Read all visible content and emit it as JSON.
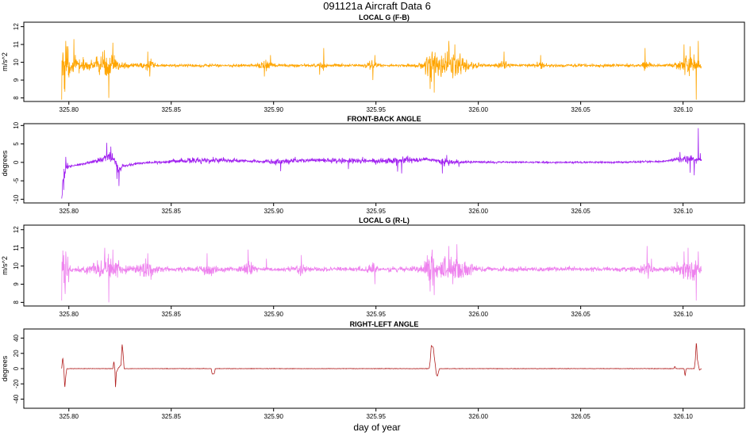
{
  "figure": {
    "title": "091121a   Aircraft Data 6",
    "xlabel": "day of year"
  },
  "chart_data": [
    {
      "type": "line",
      "title": "LOCAL G (F-B)",
      "ylabel": "m/s^2",
      "color": "#ffa500",
      "xlim": [
        325.778,
        326.13
      ],
      "ylim": [
        7.8,
        12.25
      ],
      "x_ticks": [
        325.8,
        325.85,
        325.9,
        325.95,
        326.0,
        326.05,
        326.1
      ],
      "x_tick_labels": [
        "325.80",
        "325.85",
        "325.90",
        "325.95",
        "326.00",
        "326.05",
        "326.10"
      ],
      "y_ticks": [
        8,
        9,
        10,
        11,
        12
      ],
      "y_tick_labels": [
        "8",
        "9",
        "10",
        "11",
        "12"
      ],
      "x_range": [
        325.7965,
        326.109
      ],
      "baseline": 9.82,
      "noise": 0.08,
      "bursts": [
        {
          "x": 325.798,
          "width": 0.002,
          "amp": 1.2,
          "spikes": [
            [
              325.7965,
              7.9
            ],
            [
              325.7985,
              11.2
            ],
            [
              325.7995,
              10.9
            ]
          ]
        },
        {
          "x": 325.804,
          "width": 0.004,
          "amp": 0.3,
          "spikes": [
            [
              325.8025,
              11.3
            ]
          ]
        },
        {
          "x": 325.818,
          "width": 0.008,
          "amp": 0.5,
          "spikes": [
            [
              325.8195,
              8.0
            ],
            [
              325.8215,
              11.1
            ],
            [
              325.8165,
              10.6
            ]
          ]
        },
        {
          "x": 325.838,
          "width": 0.003,
          "amp": 0.3,
          "spikes": [
            [
              325.8385,
              10.6
            ],
            [
              325.8395,
              9.2
            ]
          ]
        },
        {
          "x": 325.896,
          "width": 0.003,
          "amp": 0.2,
          "spikes": [
            [
              325.8955,
              9.2
            ],
            [
              325.8985,
              10.4
            ]
          ]
        },
        {
          "x": 325.924,
          "width": 0.002,
          "amp": 0.2,
          "spikes": [
            [
              325.9245,
              10.8
            ],
            [
              325.9225,
              9.3
            ]
          ]
        },
        {
          "x": 325.948,
          "width": 0.002,
          "amp": 0.2,
          "spikes": [
            [
              325.9485,
              9.0
            ],
            [
              325.9495,
              10.4
            ]
          ]
        },
        {
          "x": 325.977,
          "width": 0.003,
          "amp": 0.5,
          "spikes": [
            [
              325.9765,
              8.5
            ],
            [
              325.9785,
              8.3
            ],
            [
              325.9775,
              10.6
            ]
          ]
        },
        {
          "x": 325.987,
          "width": 0.008,
          "amp": 0.6,
          "spikes": [
            [
              325.9855,
              11.2
            ],
            [
              325.9885,
              11.0
            ],
            [
              325.9875,
              9.1
            ]
          ]
        },
        {
          "x": 326.012,
          "width": 0.003,
          "amp": 0.15,
          "spikes": [
            [
              326.0125,
              10.6
            ]
          ]
        },
        {
          "x": 326.03,
          "width": 0.002,
          "amp": 0.15,
          "spikes": [
            [
              326.0305,
              10.4
            ]
          ]
        },
        {
          "x": 326.082,
          "width": 0.002,
          "amp": 0.2,
          "spikes": [
            [
              326.0815,
              10.8
            ]
          ]
        },
        {
          "x": 326.104,
          "width": 0.006,
          "amp": 0.4,
          "spikes": [
            [
              326.1005,
              11.0
            ],
            [
              326.1035,
              10.9
            ],
            [
              326.1065,
              7.9
            ],
            [
              326.1075,
              11.2
            ]
          ]
        }
      ]
    },
    {
      "type": "line",
      "title": "FRONT-BACK ANGLE",
      "ylabel": "degrees",
      "color": "#a020f0",
      "xlim": [
        325.778,
        326.13
      ],
      "ylim": [
        -11,
        10.5
      ],
      "x_ticks": [
        325.8,
        325.85,
        325.9,
        325.95,
        326.0,
        326.05,
        326.1
      ],
      "x_tick_labels": [
        "325.80",
        "325.85",
        "325.90",
        "325.95",
        "326.00",
        "326.05",
        "326.10"
      ],
      "y_ticks": [
        -10,
        -5,
        0,
        5,
        10
      ],
      "y_tick_labels": [
        "-10",
        "-5",
        "0",
        "5",
        "10"
      ],
      "x_range": [
        325.7965,
        326.109
      ],
      "baseline": 0.0,
      "noise": 0.25,
      "segments": [
        [
          325.7965,
          -10.2
        ],
        [
          325.7975,
          -3.0
        ],
        [
          325.799,
          -1.2
        ],
        [
          325.805,
          -0.6
        ],
        [
          325.815,
          0.5
        ],
        [
          325.819,
          2.0
        ],
        [
          325.8215,
          1.5
        ],
        [
          325.8245,
          -2.0
        ],
        [
          325.826,
          -1.0
        ],
        [
          325.835,
          -0.2
        ],
        [
          325.86,
          0.5
        ],
        [
          325.875,
          0.6
        ],
        [
          325.9,
          0.2
        ],
        [
          325.92,
          0.6
        ],
        [
          325.95,
          0.3
        ],
        [
          325.975,
          0.8
        ],
        [
          325.985,
          0.0
        ],
        [
          325.995,
          0.1
        ],
        [
          326.03,
          0.0
        ],
        [
          326.07,
          0.0
        ],
        [
          326.09,
          0.3
        ],
        [
          326.1,
          1.0
        ],
        [
          326.105,
          0.5
        ],
        [
          326.109,
          0.8
        ]
      ],
      "bursts": [
        {
          "x": 325.798,
          "width": 0.002,
          "amp": 1.5,
          "spikes": [
            [
              325.7975,
              -7.5
            ],
            [
              325.7985,
              1.5
            ]
          ]
        },
        {
          "x": 325.82,
          "width": 0.006,
          "amp": 1.2,
          "spikes": [
            [
              325.8185,
              5.3
            ],
            [
              325.8235,
              -4.5
            ],
            [
              325.8245,
              -6.4
            ],
            [
              325.8205,
              4.3
            ]
          ]
        },
        {
          "x": 325.867,
          "width": 0.02,
          "amp": 0.5,
          "spikes": [
            [
              325.8705,
              1.5
            ],
            [
              325.8755,
              1.4
            ]
          ]
        },
        {
          "x": 325.905,
          "width": 0.008,
          "amp": 0.5,
          "spikes": [
            [
              325.9035,
              -2.4
            ],
            [
              325.9105,
              1.5
            ]
          ]
        },
        {
          "x": 325.935,
          "width": 0.015,
          "amp": 0.5,
          "spikes": [
            [
              325.9365,
              -1.8
            ],
            [
              325.9435,
              1.5
            ]
          ]
        },
        {
          "x": 325.962,
          "width": 0.01,
          "amp": 0.7,
          "spikes": [
            [
              325.9605,
              -2.5
            ],
            [
              325.9625,
              -3.0
            ],
            [
              325.9655,
              1.8
            ]
          ]
        },
        {
          "x": 325.985,
          "width": 0.006,
          "amp": 0.6,
          "spikes": [
            [
              325.9825,
              -3.0
            ],
            [
              325.9845,
              2.0
            ],
            [
              325.9905,
              -1.2
            ]
          ]
        },
        {
          "x": 326.103,
          "width": 0.006,
          "amp": 0.8,
          "spikes": [
            [
              326.0985,
              2.8
            ],
            [
              326.1035,
              -2.8
            ],
            [
              326.1075,
              9.3
            ],
            [
              326.1085,
              2.5
            ],
            [
              326.1055,
              -3.5
            ]
          ]
        }
      ]
    },
    {
      "type": "line",
      "title": "LOCAL G (R-L)",
      "ylabel": "m/s^2",
      "color": "#ee82ee",
      "xlim": [
        325.778,
        326.13
      ],
      "ylim": [
        7.8,
        12.25
      ],
      "x_ticks": [
        325.8,
        325.85,
        325.9,
        325.95,
        326.0,
        326.05,
        326.1
      ],
      "x_tick_labels": [
        "325.80",
        "325.85",
        "325.90",
        "325.95",
        "326.00",
        "326.05",
        "326.10"
      ],
      "y_ticks": [
        8,
        9,
        10,
        11,
        12
      ],
      "y_tick_labels": [
        "8",
        "9",
        "10",
        "11",
        "12"
      ],
      "x_range": [
        325.7965,
        326.109
      ],
      "baseline": 9.82,
      "noise": 0.12,
      "bursts": [
        {
          "x": 325.798,
          "width": 0.002,
          "amp": 1.0,
          "spikes": [
            [
              325.7965,
              8.1
            ],
            [
              325.7985,
              10.8
            ],
            [
              325.7975,
              10.6
            ]
          ]
        },
        {
          "x": 325.818,
          "width": 0.008,
          "amp": 0.5,
          "spikes": [
            [
              325.8195,
              8.0
            ],
            [
              325.8175,
              11.0
            ],
            [
              325.8215,
              10.9
            ]
          ]
        },
        {
          "x": 325.838,
          "width": 0.004,
          "amp": 0.4,
          "spikes": [
            [
              325.8385,
              10.7
            ]
          ]
        },
        {
          "x": 325.867,
          "width": 0.004,
          "amp": 0.3,
          "spikes": [
            [
              325.8675,
              10.7
            ]
          ]
        },
        {
          "x": 325.887,
          "width": 0.003,
          "amp": 0.3,
          "spikes": [
            [
              325.8875,
              10.9
            ],
            [
              325.8965,
              10.4
            ]
          ]
        },
        {
          "x": 325.913,
          "width": 0.002,
          "amp": 0.3,
          "spikes": [
            [
              325.9135,
              10.6
            ]
          ]
        },
        {
          "x": 325.948,
          "width": 0.002,
          "amp": 0.3,
          "spikes": [
            [
              325.9485,
              10.2
            ],
            [
              325.9495,
              9.0
            ]
          ]
        },
        {
          "x": 325.977,
          "width": 0.004,
          "amp": 0.6,
          "spikes": [
            [
              325.9765,
              8.6
            ],
            [
              325.9775,
              10.9
            ],
            [
              325.9785,
              8.4
            ]
          ]
        },
        {
          "x": 325.988,
          "width": 0.008,
          "amp": 0.6,
          "spikes": [
            [
              325.9855,
              11.1
            ],
            [
              325.9895,
              11.2
            ],
            [
              325.9875,
              9.0
            ]
          ]
        },
        {
          "x": 326.082,
          "width": 0.003,
          "amp": 0.3,
          "spikes": [
            [
              326.0825,
              11.1
            ],
            [
              326.0845,
              10.4
            ]
          ]
        },
        {
          "x": 326.103,
          "width": 0.006,
          "amp": 0.4,
          "spikes": [
            [
              326.1005,
              10.8
            ],
            [
              326.1025,
              11.0
            ],
            [
              326.1065,
              8.1
            ],
            [
              326.1075,
              10.8
            ]
          ]
        }
      ]
    },
    {
      "type": "line",
      "title": "RIGHT-LEFT ANGLE",
      "ylabel": "degrees",
      "color": "#b22222",
      "xlim": [
        325.778,
        326.13
      ],
      "ylim": [
        -52,
        52
      ],
      "x_ticks": [
        325.8,
        325.85,
        325.9,
        325.95,
        326.0,
        326.05,
        326.1
      ],
      "x_tick_labels": [
        "325.80",
        "325.85",
        "325.90",
        "325.95",
        "326.00",
        "326.05",
        "326.10"
      ],
      "y_ticks": [
        -40,
        -20,
        0,
        20,
        40
      ],
      "y_tick_labels": [
        "-40",
        "-20",
        "0",
        "20",
        "40"
      ],
      "x_range": [
        325.7965,
        326.109
      ],
      "baseline": 0.0,
      "noise": 0.3,
      "segments": [
        [
          325.7965,
          0
        ],
        [
          325.797,
          15
        ],
        [
          325.7975,
          3
        ],
        [
          325.798,
          -26
        ],
        [
          325.7985,
          -10
        ],
        [
          325.799,
          0
        ],
        [
          325.8215,
          0
        ],
        [
          325.822,
          10
        ],
        [
          325.8225,
          -2
        ],
        [
          325.8228,
          -26
        ],
        [
          325.8232,
          -5
        ],
        [
          325.824,
          0
        ],
        [
          325.8255,
          5
        ],
        [
          325.826,
          33
        ],
        [
          325.8265,
          20
        ],
        [
          325.827,
          0
        ],
        [
          325.8695,
          0
        ],
        [
          325.87,
          -7
        ],
        [
          325.871,
          -7
        ],
        [
          325.8715,
          0
        ],
        [
          325.976,
          0
        ],
        [
          325.9765,
          10
        ],
        [
          325.977,
          30
        ],
        [
          325.978,
          28
        ],
        [
          325.9785,
          15
        ],
        [
          325.979,
          5
        ],
        [
          325.9795,
          -8
        ],
        [
          325.98,
          -10
        ],
        [
          325.981,
          0
        ],
        [
          326.0955,
          0
        ],
        [
          326.096,
          3
        ],
        [
          326.0965,
          0
        ],
        [
          326.1005,
          0
        ],
        [
          326.101,
          -10
        ],
        [
          326.1015,
          0
        ],
        [
          326.1055,
          0
        ],
        [
          326.106,
          12
        ],
        [
          326.1065,
          36
        ],
        [
          326.107,
          12
        ],
        [
          326.1075,
          5
        ],
        [
          326.108,
          -2
        ],
        [
          326.109,
          0
        ]
      ],
      "bursts": []
    }
  ]
}
